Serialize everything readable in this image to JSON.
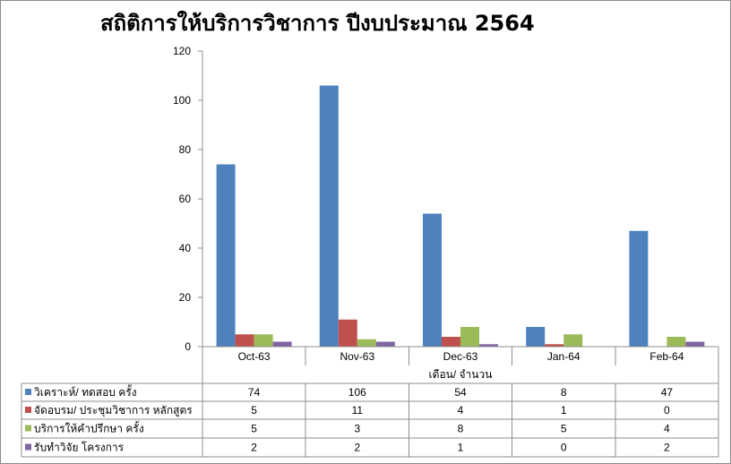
{
  "chart_data": {
    "type": "bar",
    "title": "สถิติการให้บริการวิชาการ ปีงบประมาณ 2564",
    "xlabel": "เดือน/ จำนวน",
    "ylabel": "",
    "ylim": [
      0,
      120
    ],
    "yticks": [
      0,
      20,
      40,
      60,
      80,
      100,
      120
    ],
    "grid": false,
    "legend": "data-table-left",
    "categories": [
      "Oct-63",
      "Nov-63",
      "Dec-63",
      "Jan-64",
      "Feb-64"
    ],
    "series": [
      {
        "name": "วิเคราะห์/ ทดสอบ ครั้ง",
        "color": "#4F81BD",
        "values": [
          74,
          106,
          54,
          8,
          47
        ]
      },
      {
        "name": "จัดอบรม/ ประชุมวิชาการ หลักสูตร",
        "color": "#C0504D",
        "values": [
          5,
          11,
          4,
          1,
          0
        ]
      },
      {
        "name": "บริการให้คำปรึกษา ครั้ง",
        "color": "#9BBB59",
        "values": [
          5,
          3,
          8,
          5,
          4
        ]
      },
      {
        "name": "รับทำวิจัย โครงการ",
        "color": "#8064A2",
        "values": [
          2,
          2,
          1,
          0,
          2
        ]
      }
    ]
  }
}
